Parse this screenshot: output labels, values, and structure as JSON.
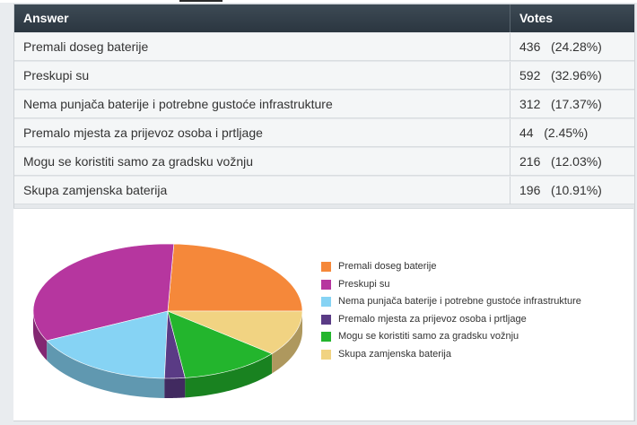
{
  "table": {
    "header_answer": "Answer",
    "header_votes": "Votes",
    "rows": [
      {
        "answer": "Premali doseg baterije",
        "votes": "436",
        "percent": "(24.28%)"
      },
      {
        "answer": "Preskupi su",
        "votes": "592",
        "percent": "(32.96%)"
      },
      {
        "answer": "Nema punjača baterije i potrebne gustoće infrastrukture",
        "votes": "312",
        "percent": "(17.37%)"
      },
      {
        "answer": "Premalo mjesta za prijevoz osoba i prtljage",
        "votes": "44",
        "percent": "(2.45%)"
      },
      {
        "answer": "Mogu se koristiti samo za gradsku vožnju",
        "votes": "216",
        "percent": "(12.03%)"
      },
      {
        "answer": "Skupa zamjenska baterija",
        "votes": "196",
        "percent": "(10.91%)"
      }
    ]
  },
  "chart_data": {
    "type": "pie",
    "style": "3d",
    "legend_position": "right",
    "categories": [
      "Premali doseg baterije",
      "Preskupi su",
      "Nema punjača baterije i potrebne gustoće infrastrukture",
      "Premalo mjesta za prijevoz osoba i prtljage",
      "Mogu se koristiti samo za gradsku vožnju",
      "Skupa zamjenska baterija"
    ],
    "values": [
      436,
      592,
      312,
      44,
      216,
      196
    ],
    "percentages": [
      24.28,
      32.96,
      17.37,
      2.45,
      12.03,
      10.91
    ],
    "colors": [
      "#f5883a",
      "#b6369f",
      "#86d3f4",
      "#5a3b85",
      "#23b52d",
      "#f1d382"
    ]
  }
}
